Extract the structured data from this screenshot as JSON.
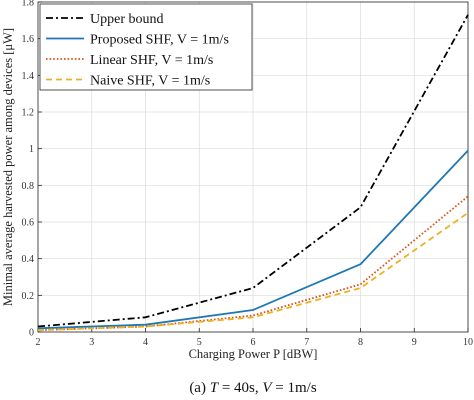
{
  "chart_data": {
    "type": "line",
    "xlabel": "Charging Power P [dBW]",
    "ylabel": "Minimal average harvested power among devices [μW]",
    "xlim": [
      2,
      10
    ],
    "ylim": [
      0,
      1.8
    ],
    "xticks": [
      "2",
      "3",
      "4",
      "5",
      "6",
      "7",
      "8",
      "9",
      "10"
    ],
    "yticks": [
      "0",
      "0.2",
      "0.4",
      "0.6",
      "0.8",
      "1",
      "1.2",
      "1.4",
      "1.6",
      "1.8"
    ],
    "grid": true,
    "legend_position": "top-left",
    "x": [
      2,
      4,
      6,
      8,
      10
    ],
    "series": [
      {
        "name": "Upper bound",
        "values": [
          0.03,
          0.08,
          0.24,
          0.68,
          1.73
        ],
        "color": "#000000",
        "style": "dashdot"
      },
      {
        "name": "Proposed SHF, V = 1m/s",
        "values": [
          0.02,
          0.04,
          0.12,
          0.37,
          0.99
        ],
        "color": "#1f77b4",
        "style": "solid"
      },
      {
        "name": "Linear SHF, V = 1m/s",
        "values": [
          0.01,
          0.03,
          0.09,
          0.26,
          0.74
        ],
        "color": "#d95319",
        "style": "dotted"
      },
      {
        "name": "Naive SHF, V = 1m/s",
        "values": [
          0.01,
          0.03,
          0.08,
          0.24,
          0.65
        ],
        "color": "#edb120",
        "style": "dashed"
      }
    ]
  },
  "caption": {
    "prefix": "(a) ",
    "t_var": "T",
    "t_value": " = 40s, ",
    "v_var": "V",
    "v_value": " = 1m/s"
  }
}
